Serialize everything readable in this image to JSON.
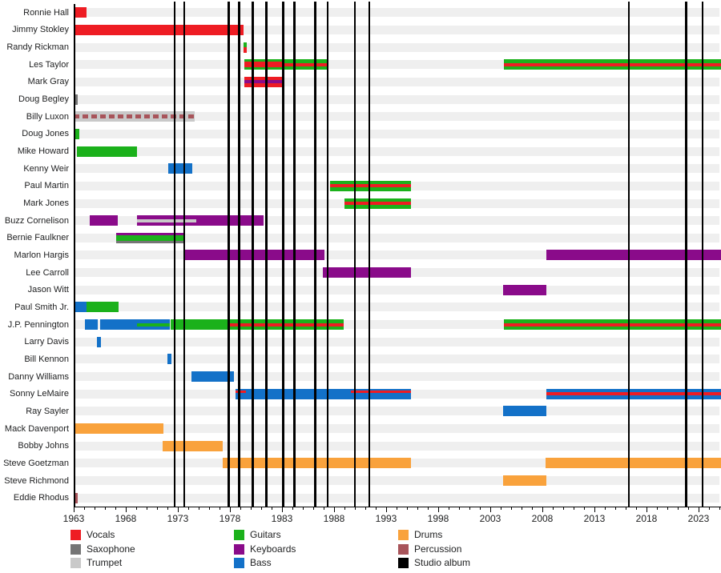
{
  "chart_data": {
    "type": "timeline",
    "description": "Band members timeline (gantt-style) with instrument colors and studio album release lines",
    "x_axis": {
      "start": 1963,
      "end": 2025.3,
      "tick_labels": [
        "1963",
        "1968",
        "1973",
        "1978",
        "1983",
        "1988",
        "1993",
        "1998",
        "2003",
        "2008",
        "2013",
        "2018",
        "2023"
      ],
      "minor_tick_interval": 1,
      "grid": false
    },
    "colors": {
      "vocals": "#ee1c23",
      "saxophone": "#757575",
      "trumpet": "#c9c9c9",
      "guitars": "#1bb11b",
      "keyboards": "#8a0b8a",
      "bass": "#1371c8",
      "drums": "#f9a23c",
      "percussion": "#a8545a",
      "album": "#000000"
    },
    "album_line_years": [
      1972.7,
      1973.6,
      1977.9,
      1978.9,
      1980.2,
      1981.5,
      1983.1,
      1984.2,
      1986.2,
      1987.4,
      1990.0,
      1991.4,
      2016.3,
      2021.8,
      2023.4
    ],
    "members": [
      {
        "name": "Ronnie Hall",
        "segments": [
          {
            "s": 1963.0,
            "e": 1964.2,
            "c": "vocals"
          }
        ]
      },
      {
        "name": "Jimmy Stokley",
        "segments": [
          {
            "s": 1963.0,
            "e": 1979.3,
            "c": "vocals"
          }
        ]
      },
      {
        "name": "Randy Rickman",
        "segments": [
          {
            "s": 1979.3,
            "e": 1979.6,
            "c": "vocals",
            "st": [
              {
                "c": "guitars",
                "p": "halftop"
              }
            ]
          }
        ]
      },
      {
        "name": "Les Taylor",
        "segments": [
          {
            "s": 1979.4,
            "e": 1983.1,
            "c": "vocals",
            "st": [
              {
                "c": "guitars",
                "p": "top"
              },
              {
                "c": "guitars",
                "p": "bottom"
              }
            ]
          },
          {
            "s": 1983.1,
            "e": 1987.4,
            "c": "guitars",
            "st": [
              {
                "c": "vocals",
                "p": "center"
              }
            ]
          },
          {
            "s": 2004.3,
            "e": 2025.3,
            "c": "guitars",
            "st": [
              {
                "c": "vocals",
                "p": "center"
              }
            ]
          }
        ]
      },
      {
        "name": "Mark Gray",
        "segments": [
          {
            "s": 1979.4,
            "e": 1983.1,
            "c": "vocals",
            "st": [
              {
                "c": "keyboards",
                "p": "center"
              }
            ]
          }
        ]
      },
      {
        "name": "Doug Begley",
        "segments": [
          {
            "s": 1963.0,
            "e": 1963.35,
            "c": "saxophone"
          }
        ]
      },
      {
        "name": "Billy Luxon",
        "segments": [
          {
            "s": 1963.0,
            "e": 1974.6,
            "c": "trumpet",
            "st": [
              {
                "c": "percussion",
                "p": "center",
                "dashed": true
              }
            ]
          }
        ]
      },
      {
        "name": "Doug Jones",
        "segments": [
          {
            "s": 1963.0,
            "e": 1963.5,
            "c": "guitars"
          }
        ]
      },
      {
        "name": "Mike Howard",
        "segments": [
          {
            "s": 1963.3,
            "e": 1969.1,
            "c": "guitars"
          }
        ]
      },
      {
        "name": "Kenny Weir",
        "segments": [
          {
            "s": 1972.1,
            "e": 1974.4,
            "c": "bass"
          }
        ]
      },
      {
        "name": "Paul Martin",
        "segments": [
          {
            "s": 1987.6,
            "e": 1995.4,
            "c": "guitars",
            "st": [
              {
                "c": "vocals",
                "p": "center"
              }
            ]
          }
        ]
      },
      {
        "name": "Mark Jones",
        "segments": [
          {
            "s": 1989.0,
            "e": 1995.4,
            "c": "guitars",
            "st": [
              {
                "c": "vocals",
                "p": "center"
              }
            ]
          }
        ]
      },
      {
        "name": "Buzz Cornelison",
        "segments": [
          {
            "s": 1964.5,
            "e": 1967.2,
            "c": "keyboards"
          },
          {
            "s": 1969.1,
            "e": 1974.8,
            "c": "keyboards",
            "st": [
              {
                "c": "trumpet",
                "p": "center"
              }
            ]
          },
          {
            "s": 1974.8,
            "e": 1981.2,
            "c": "keyboards"
          }
        ]
      },
      {
        "name": "Bernie Faulkner",
        "segments": [
          {
            "s": 1967.1,
            "e": 1973.7,
            "c": "guitars",
            "st": [
              {
                "c": "keyboards",
                "p": "top"
              },
              {
                "c": "saxophone",
                "p": "bottom"
              }
            ]
          }
        ]
      },
      {
        "name": "Marlon Hargis",
        "segments": [
          {
            "s": 1973.6,
            "e": 1987.1,
            "c": "keyboards"
          },
          {
            "s": 2008.4,
            "e": 2025.3,
            "c": "keyboards"
          }
        ]
      },
      {
        "name": "Lee Carroll",
        "segments": [
          {
            "s": 1986.9,
            "e": 1995.4,
            "c": "keyboards"
          }
        ]
      },
      {
        "name": "Jason Witt",
        "segments": [
          {
            "s": 2004.2,
            "e": 2008.4,
            "c": "keyboards"
          }
        ]
      },
      {
        "name": "Paul Smith Jr.",
        "segments": [
          {
            "s": 1963.0,
            "e": 1964.25,
            "c": "bass"
          },
          {
            "s": 1964.25,
            "e": 1967.3,
            "c": "guitars"
          }
        ]
      },
      {
        "name": "J.P. Pennington",
        "segments": [
          {
            "s": 1964.1,
            "e": 1965.3,
            "c": "bass"
          },
          {
            "s": 1965.5,
            "e": 1969.1,
            "c": "bass"
          },
          {
            "s": 1969.1,
            "e": 1972.2,
            "c": "bass",
            "st": [
              {
                "c": "guitars",
                "p": "center"
              }
            ]
          },
          {
            "s": 1972.3,
            "e": 1977.9,
            "c": "guitars"
          },
          {
            "s": 1977.9,
            "e": 1988.9,
            "c": "guitars",
            "st": [
              {
                "c": "vocals",
                "p": "center"
              }
            ]
          },
          {
            "s": 2004.3,
            "e": 2025.3,
            "c": "guitars",
            "st": [
              {
                "c": "vocals",
                "p": "center"
              }
            ]
          }
        ]
      },
      {
        "name": "Larry Davis",
        "segments": [
          {
            "s": 1965.2,
            "e": 1965.6,
            "c": "bass"
          }
        ]
      },
      {
        "name": "Bill Kennon",
        "segments": [
          {
            "s": 1972.0,
            "e": 1972.4,
            "c": "bass"
          }
        ]
      },
      {
        "name": "Danny Williams",
        "segments": [
          {
            "s": 1974.3,
            "e": 1978.4,
            "c": "bass"
          }
        ]
      },
      {
        "name": "Sonny LeMaire",
        "segments": [
          {
            "s": 1978.5,
            "e": 1979.5,
            "c": "bass",
            "st": [
              {
                "c": "vocals",
                "p": "upper"
              }
            ]
          },
          {
            "s": 1979.5,
            "e": 1989.6,
            "c": "bass"
          },
          {
            "s": 1989.6,
            "e": 1995.4,
            "c": "bass",
            "st": [
              {
                "c": "vocals",
                "p": "upper"
              }
            ]
          },
          {
            "s": 2008.4,
            "e": 2025.3,
            "c": "bass",
            "st": [
              {
                "c": "vocals",
                "p": "center"
              }
            ]
          }
        ]
      },
      {
        "name": "Ray Sayler",
        "segments": [
          {
            "s": 2004.2,
            "e": 2008.4,
            "c": "bass"
          }
        ]
      },
      {
        "name": "Mack Davenport",
        "segments": [
          {
            "s": 1963.0,
            "e": 1971.6,
            "c": "drums"
          }
        ]
      },
      {
        "name": "Bobby Johns",
        "segments": [
          {
            "s": 1971.5,
            "e": 1977.3,
            "c": "drums"
          }
        ]
      },
      {
        "name": "Steve Goetzman",
        "segments": [
          {
            "s": 1977.3,
            "e": 1995.4,
            "c": "drums"
          },
          {
            "s": 2008.3,
            "e": 2025.3,
            "c": "drums"
          }
        ]
      },
      {
        "name": "Steve Richmond",
        "segments": [
          {
            "s": 2004.2,
            "e": 2008.4,
            "c": "drums"
          }
        ]
      },
      {
        "name": "Eddie Rhodus",
        "segments": [
          {
            "s": 1963.0,
            "e": 1963.35,
            "c": "percussion"
          }
        ]
      }
    ],
    "legend": {
      "position": "bottom",
      "columns": [
        [
          {
            "label": "Vocals",
            "key": "vocals"
          },
          {
            "label": "Saxophone",
            "key": "saxophone"
          },
          {
            "label": "Trumpet",
            "key": "trumpet"
          }
        ],
        [
          {
            "label": "Guitars",
            "key": "guitars"
          },
          {
            "label": "Keyboards",
            "key": "keyboards"
          },
          {
            "label": "Bass",
            "key": "bass"
          }
        ],
        [
          {
            "label": "Drums",
            "key": "drums"
          },
          {
            "label": "Percussion",
            "key": "percussion"
          },
          {
            "label": "Studio album",
            "key": "album"
          }
        ]
      ]
    }
  }
}
